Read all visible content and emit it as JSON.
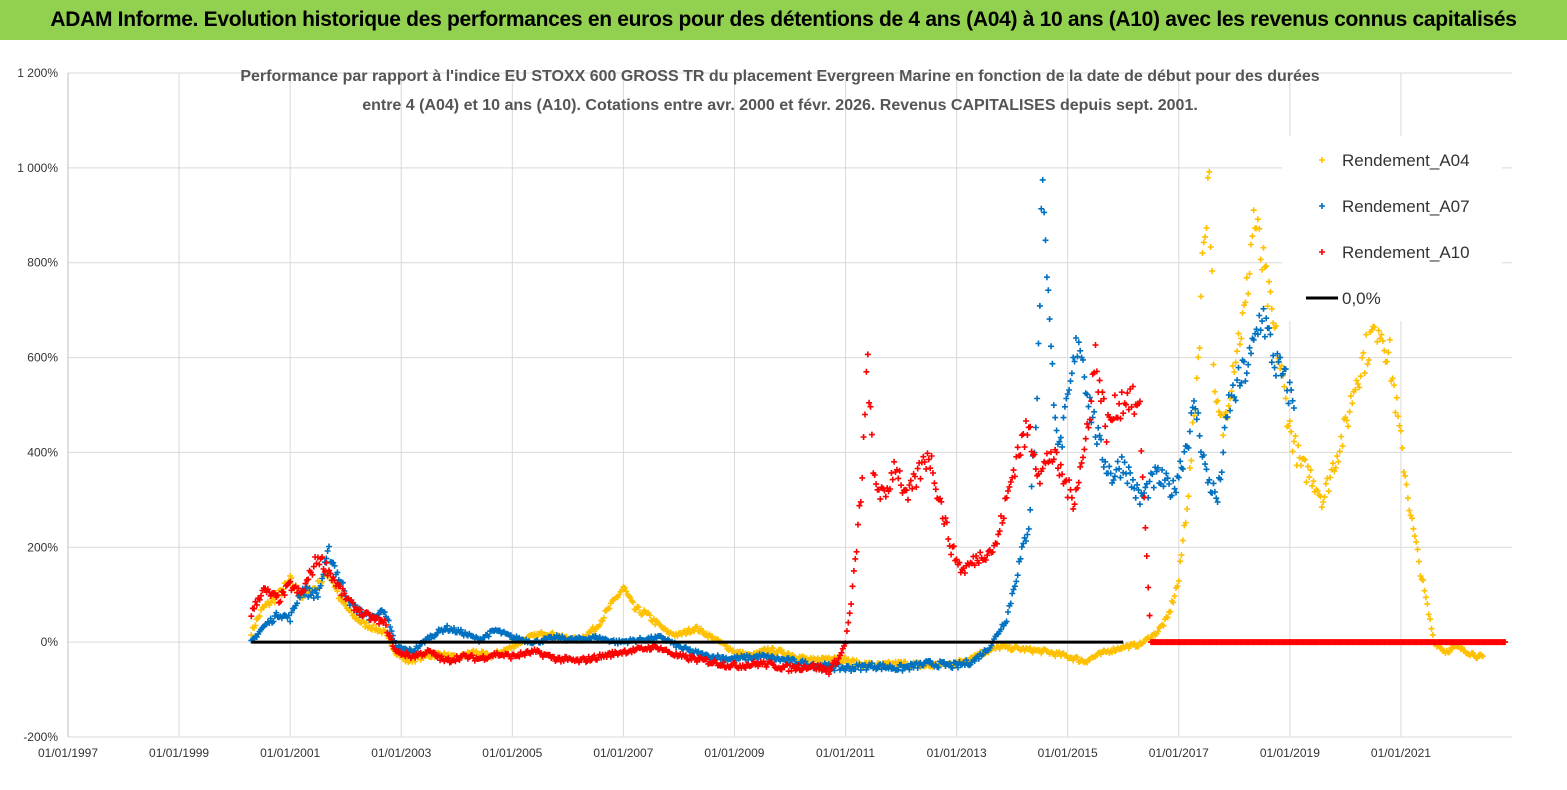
{
  "banner": {
    "text": "ADAM Informe. Evolution historique des performances en euros pour des détentions de 4 ans (A04) à 10 ans (A10) avec les revenus connus capitalisés"
  },
  "colors": {
    "banner_bg": "#92d050",
    "A04": "#ffc000",
    "A07": "#0070c0",
    "A10": "#ff0000",
    "zero": "#000000",
    "grid": "#d9d9d9"
  },
  "chart_data": {
    "type": "scatter",
    "title_lines": [
      "Performance par rapport à l'indice EU STOXX 600 GROSS TR  du placement Evergreen Marine  en fonction de la date de début pour des durées",
      "entre 4 (A04) et 10 ans (A10). Cotations entre avr. 2000 et févr. 2026. Revenus CAPITALISES depuis sept. 2001."
    ],
    "x_ticks": [
      "01/01/1997",
      "01/01/1999",
      "01/01/2001",
      "01/01/2003",
      "01/01/2005",
      "01/01/2007",
      "01/01/2009",
      "01/01/2011",
      "01/01/2013",
      "01/01/2015",
      "01/01/2017",
      "01/01/2019",
      "01/01/2021"
    ],
    "x_range_years": [
      1997.0,
      2023.0
    ],
    "y_ticks": [
      "-200%",
      "0%",
      "200%",
      "400%",
      "600%",
      "800%",
      "1 000%",
      "1 200%"
    ],
    "y_range": [
      -200,
      1200
    ],
    "legend_position": "top-right",
    "series": [
      {
        "name": "Rendement_A04",
        "color": "#ffc000",
        "points": [
          [
            2000.3,
            20
          ],
          [
            2000.5,
            70
          ],
          [
            2000.8,
            100
          ],
          [
            2001.0,
            130
          ],
          [
            2001.2,
            95
          ],
          [
            2001.5,
            120
          ],
          [
            2001.7,
            150
          ],
          [
            2001.9,
            90
          ],
          [
            2002.1,
            60
          ],
          [
            2002.3,
            40
          ],
          [
            2002.5,
            30
          ],
          [
            2002.7,
            20
          ],
          [
            2002.9,
            -20
          ],
          [
            2003.1,
            -40
          ],
          [
            2003.4,
            -30
          ],
          [
            2003.7,
            -25
          ],
          [
            2004.0,
            -35
          ],
          [
            2004.3,
            -20
          ],
          [
            2004.6,
            -30
          ],
          [
            2005.0,
            -10
          ],
          [
            2005.3,
            10
          ],
          [
            2005.6,
            20
          ],
          [
            2005.9,
            10
          ],
          [
            2006.2,
            5
          ],
          [
            2006.5,
            30
          ],
          [
            2006.8,
            80
          ],
          [
            2007.0,
            115
          ],
          [
            2007.2,
            70
          ],
          [
            2007.4,
            60
          ],
          [
            2007.6,
            40
          ],
          [
            2007.8,
            20
          ],
          [
            2008.0,
            15
          ],
          [
            2008.3,
            30
          ],
          [
            2008.6,
            10
          ],
          [
            2009.0,
            -20
          ],
          [
            2009.3,
            -30
          ],
          [
            2009.6,
            -15
          ],
          [
            2010.0,
            -25
          ],
          [
            2010.4,
            -40
          ],
          [
            2010.8,
            -30
          ],
          [
            2011.2,
            -45
          ],
          [
            2011.6,
            -50
          ],
          [
            2012.0,
            -45
          ],
          [
            2012.5,
            -50
          ],
          [
            2013.0,
            -45
          ],
          [
            2013.4,
            -25
          ],
          [
            2013.8,
            -10
          ],
          [
            2014.2,
            -15
          ],
          [
            2014.6,
            -20
          ],
          [
            2015.0,
            -30
          ],
          [
            2015.3,
            -40
          ],
          [
            2015.7,
            -20
          ],
          [
            2016.0,
            -10
          ],
          [
            2016.3,
            -5
          ],
          [
            2016.6,
            20
          ],
          [
            2016.8,
            50
          ],
          [
            2017.0,
            130
          ],
          [
            2017.2,
            350
          ],
          [
            2017.35,
            600
          ],
          [
            2017.45,
            850
          ],
          [
            2017.55,
            1000
          ],
          [
            2017.65,
            500
          ],
          [
            2017.8,
            450
          ],
          [
            2018.0,
            600
          ],
          [
            2018.2,
            700
          ],
          [
            2018.35,
            900
          ],
          [
            2018.5,
            800
          ],
          [
            2018.65,
            700
          ],
          [
            2018.8,
            600
          ],
          [
            2019.0,
            450
          ],
          [
            2019.2,
            370
          ],
          [
            2019.4,
            350
          ],
          [
            2019.6,
            300
          ],
          [
            2019.8,
            380
          ],
          [
            2020.0,
            450
          ],
          [
            2020.2,
            560
          ],
          [
            2020.4,
            620
          ],
          [
            2020.6,
            680
          ],
          [
            2020.8,
            600
          ],
          [
            2021.0,
            420
          ],
          [
            2021.2,
            250
          ],
          [
            2021.4,
            120
          ],
          [
            2021.6,
            0
          ],
          [
            2021.8,
            -20
          ],
          [
            2022.0,
            -10
          ],
          [
            2022.3,
            -25
          ],
          [
            2022.5,
            -35
          ]
        ]
      },
      {
        "name": "Rendement_A07",
        "color": "#0070c0",
        "points": [
          [
            2000.3,
            0
          ],
          [
            2000.5,
            30
          ],
          [
            2000.8,
            60
          ],
          [
            2001.0,
            50
          ],
          [
            2001.2,
            110
          ],
          [
            2001.5,
            100
          ],
          [
            2001.7,
            190
          ],
          [
            2001.9,
            130
          ],
          [
            2002.1,
            80
          ],
          [
            2002.3,
            60
          ],
          [
            2002.5,
            50
          ],
          [
            2002.7,
            70
          ],
          [
            2002.9,
            -10
          ],
          [
            2003.2,
            -20
          ],
          [
            2003.5,
            10
          ],
          [
            2003.8,
            30
          ],
          [
            2004.1,
            20
          ],
          [
            2004.4,
            5
          ],
          [
            2004.7,
            25
          ],
          [
            2005.0,
            10
          ],
          [
            2005.4,
            0
          ],
          [
            2005.8,
            10
          ],
          [
            2006.1,
            5
          ],
          [
            2006.5,
            10
          ],
          [
            2006.9,
            0
          ],
          [
            2007.3,
            5
          ],
          [
            2007.7,
            10
          ],
          [
            2008.0,
            -10
          ],
          [
            2008.5,
            -30
          ],
          [
            2009.0,
            -35
          ],
          [
            2009.5,
            -30
          ],
          [
            2010.0,
            -40
          ],
          [
            2010.5,
            -50
          ],
          [
            2011.0,
            -55
          ],
          [
            2011.5,
            -50
          ],
          [
            2012.0,
            -55
          ],
          [
            2012.5,
            -45
          ],
          [
            2013.0,
            -50
          ],
          [
            2013.3,
            -40
          ],
          [
            2013.6,
            -10
          ],
          [
            2013.9,
            50
          ],
          [
            2014.1,
            150
          ],
          [
            2014.3,
            250
          ],
          [
            2014.45,
            500
          ],
          [
            2014.55,
            1000
          ],
          [
            2014.7,
            600
          ],
          [
            2014.85,
            400
          ],
          [
            2015.0,
            500
          ],
          [
            2015.2,
            650
          ],
          [
            2015.4,
            500
          ],
          [
            2015.6,
            400
          ],
          [
            2015.8,
            350
          ],
          [
            2016.0,
            380
          ],
          [
            2016.3,
            300
          ],
          [
            2016.6,
            350
          ],
          [
            2016.9,
            320
          ],
          [
            2017.1,
            400
          ],
          [
            2017.3,
            500
          ],
          [
            2017.5,
            350
          ],
          [
            2017.7,
            300
          ],
          [
            2017.9,
            500
          ],
          [
            2018.1,
            550
          ],
          [
            2018.3,
            600
          ],
          [
            2018.5,
            700
          ],
          [
            2018.7,
            600
          ],
          [
            2018.9,
            550
          ],
          [
            2019.1,
            500
          ]
        ]
      },
      {
        "name": "Rendement_A10",
        "color": "#ff0000",
        "points": [
          [
            2000.3,
            60
          ],
          [
            2000.5,
            110
          ],
          [
            2000.8,
            90
          ],
          [
            2001.0,
            120
          ],
          [
            2001.2,
            100
          ],
          [
            2001.5,
            180
          ],
          [
            2001.7,
            150
          ],
          [
            2001.9,
            110
          ],
          [
            2002.1,
            80
          ],
          [
            2002.3,
            60
          ],
          [
            2002.5,
            50
          ],
          [
            2002.7,
            40
          ],
          [
            2002.9,
            -20
          ],
          [
            2003.2,
            -30
          ],
          [
            2003.5,
            -20
          ],
          [
            2003.8,
            -40
          ],
          [
            2004.1,
            -30
          ],
          [
            2004.4,
            -35
          ],
          [
            2004.7,
            -25
          ],
          [
            2005.0,
            -30
          ],
          [
            2005.4,
            -20
          ],
          [
            2005.8,
            -35
          ],
          [
            2006.2,
            -40
          ],
          [
            2006.6,
            -30
          ],
          [
            2007.0,
            -20
          ],
          [
            2007.3,
            -15
          ],
          [
            2007.6,
            -10
          ],
          [
            2008.0,
            -30
          ],
          [
            2008.5,
            -40
          ],
          [
            2009.0,
            -50
          ],
          [
            2009.5,
            -45
          ],
          [
            2010.0,
            -55
          ],
          [
            2010.4,
            -50
          ],
          [
            2010.7,
            -60
          ],
          [
            2010.9,
            -30
          ],
          [
            2011.0,
            0
          ],
          [
            2011.1,
            80
          ],
          [
            2011.2,
            200
          ],
          [
            2011.3,
            350
          ],
          [
            2011.4,
            600
          ],
          [
            2011.5,
            350
          ],
          [
            2011.7,
            300
          ],
          [
            2011.9,
            380
          ],
          [
            2012.1,
            300
          ],
          [
            2012.3,
            350
          ],
          [
            2012.5,
            400
          ],
          [
            2012.7,
            300
          ],
          [
            2012.9,
            200
          ],
          [
            2013.1,
            150
          ],
          [
            2013.4,
            180
          ],
          [
            2013.7,
            200
          ],
          [
            2013.9,
            300
          ],
          [
            2014.1,
            400
          ],
          [
            2014.3,
            450
          ],
          [
            2014.5,
            350
          ],
          [
            2014.7,
            400
          ],
          [
            2014.9,
            350
          ],
          [
            2015.1,
            300
          ],
          [
            2015.3,
            400
          ],
          [
            2015.5,
            600
          ],
          [
            2015.7,
            450
          ],
          [
            2015.9,
            500
          ],
          [
            2016.1,
            520
          ],
          [
            2016.3,
            480
          ],
          [
            2016.5,
            0
          ],
          [
            2017.0,
            0
          ],
          [
            2018.0,
            0
          ],
          [
            2019.0,
            0
          ],
          [
            2020.0,
            0
          ],
          [
            2021.0,
            0
          ],
          [
            2022.0,
            0
          ],
          [
            2022.9,
            0
          ]
        ]
      }
    ],
    "zero_line": {
      "name": "0,0%",
      "value": 0,
      "x_start": 2000.3,
      "x_end": 2016.0
    },
    "legend": [
      "Rendement_A04",
      "Rendement_A07",
      "Rendement_A10",
      "0,0%"
    ]
  }
}
